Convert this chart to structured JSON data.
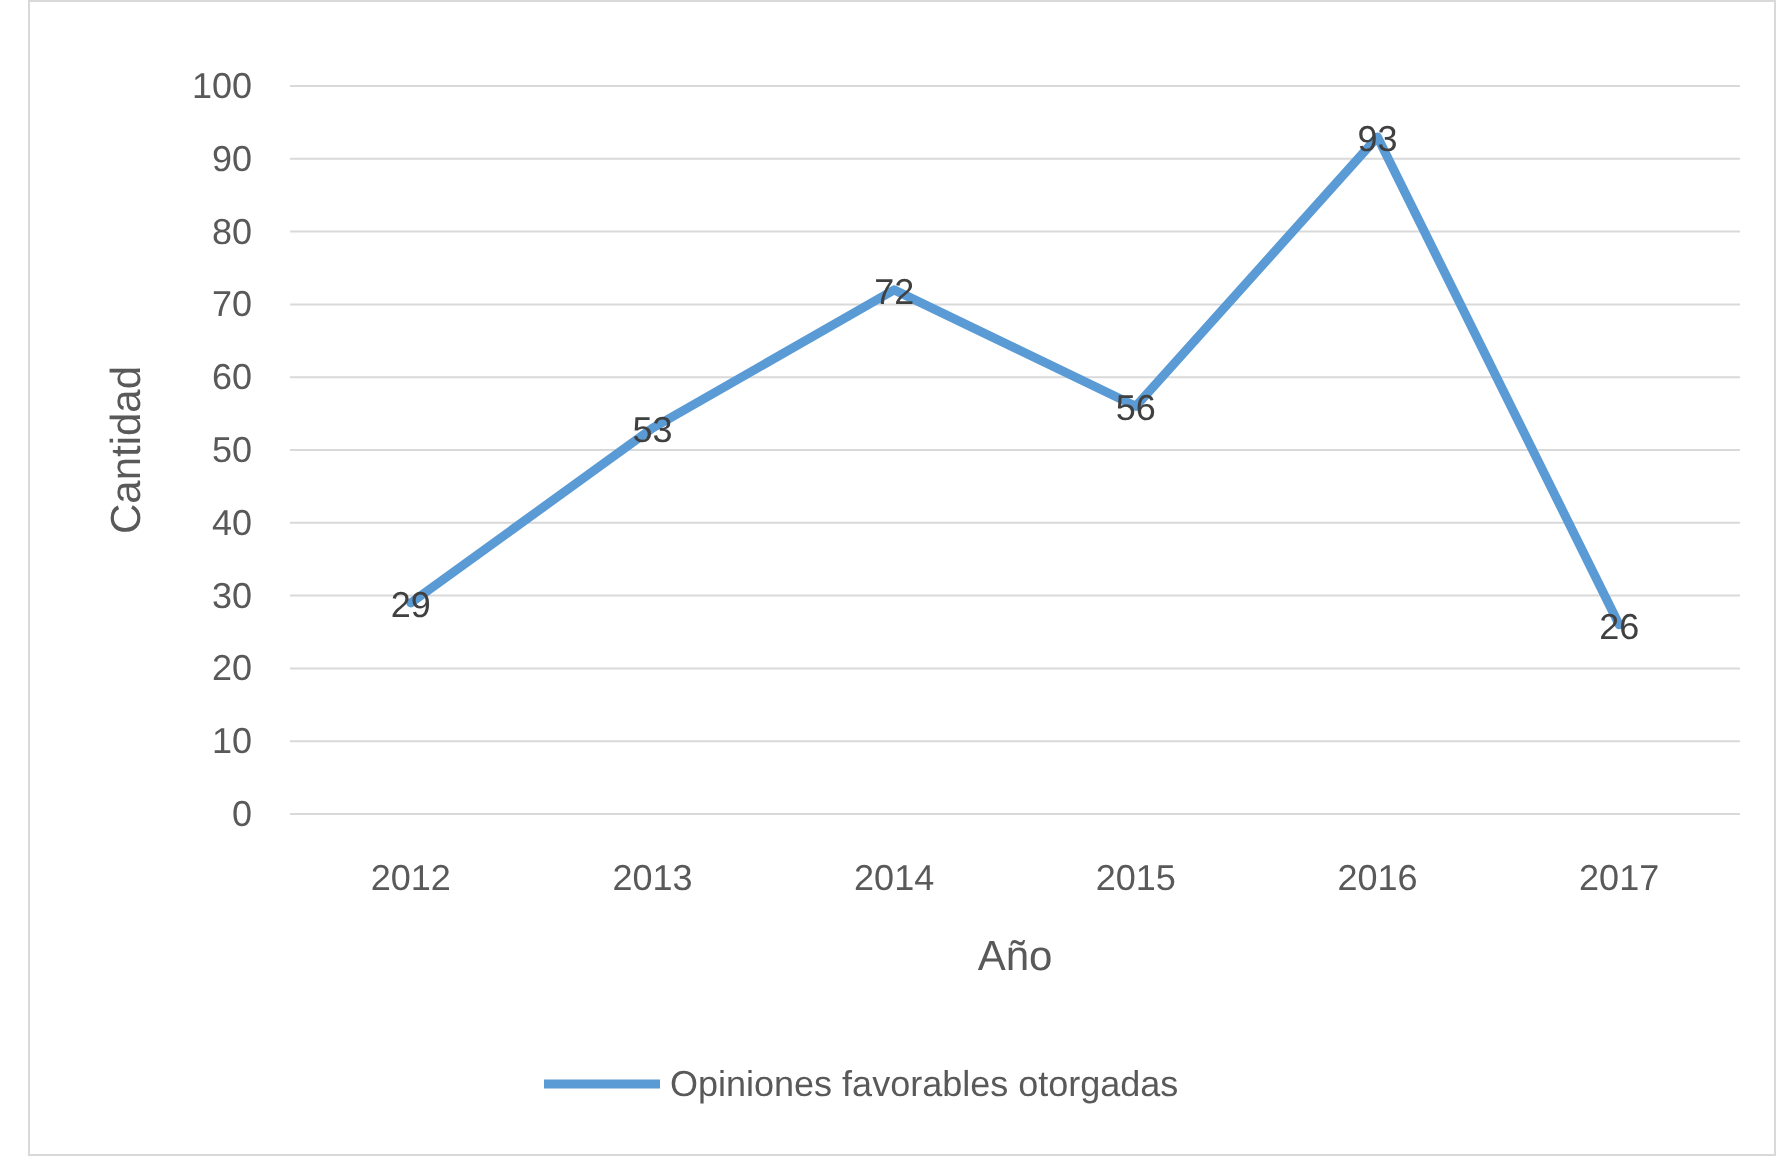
{
  "chart_data": {
    "type": "line",
    "xlabel": "Año",
    "ylabel": "Cantidad",
    "categories": [
      "2012",
      "2013",
      "2014",
      "2015",
      "2016",
      "2017"
    ],
    "series": [
      {
        "name": "Opiniones favorables otorgadas",
        "color": "#5b9bd5",
        "values": [
          29,
          53,
          72,
          56,
          93,
          26
        ]
      }
    ],
    "ylim": [
      0,
      100
    ],
    "yticks": [
      0,
      10,
      20,
      30,
      40,
      50,
      60,
      70,
      80,
      90,
      100
    ],
    "grid": "y",
    "legend": "bottom",
    "data_labels": true,
    "marker": "none",
    "line_style": "solid"
  }
}
